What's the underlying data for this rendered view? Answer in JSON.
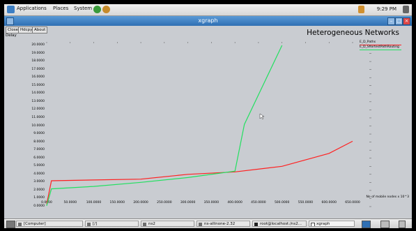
{
  "desktop": {
    "menus": [
      "Applications",
      "Places",
      "System"
    ],
    "clock": "9:29 PM"
  },
  "window": {
    "title": "xgraph",
    "buttons": [
      "Close",
      "Hdcpy",
      "About"
    ]
  },
  "chart_data": {
    "type": "line",
    "title": "Heterogeneous Networks",
    "ylabel": "Delay",
    "xlabel": "No of mobile nodes x 10^3",
    "xlim": [
      0,
      650
    ],
    "ylim": [
      0,
      20
    ],
    "x_ticks": [
      "0.0000",
      "50.0000",
      "100.0000",
      "150.0000",
      "200.0000",
      "250.0000",
      "300.0000",
      "350.0000",
      "400.0000",
      "450.0000",
      "500.0000",
      "550.0000",
      "600.0000",
      "650.0000"
    ],
    "y_ticks": [
      "0.0000",
      "1.0000",
      "2.0000",
      "3.0000",
      "4.0000",
      "5.0000",
      "6.0000",
      "7.0000",
      "8.0000",
      "9.0000",
      "10.0000",
      "11.0000",
      "12.0000",
      "13.0000",
      "14.0000",
      "15.0000",
      "16.0000",
      "17.0000",
      "18.0000",
      "19.0000",
      "20.0000"
    ],
    "series": [
      {
        "name": "E_D_Paths",
        "color": "#ff2020",
        "x": [
          0,
          10,
          100,
          200,
          300,
          400,
          500,
          600,
          650
        ],
        "y": [
          0.3,
          3.2,
          3.3,
          3.4,
          4.0,
          4.3,
          5.0,
          6.6,
          8.1
        ]
      },
      {
        "name": "E_D_ShortestPathRouting",
        "color": "#22e060",
        "x": [
          0,
          10,
          100,
          200,
          300,
          400,
          420,
          500
        ],
        "y": [
          0.1,
          2.2,
          2.5,
          3.0,
          3.6,
          4.4,
          10.2,
          20.0
        ]
      }
    ],
    "grid": false,
    "legend_position": "top-right"
  },
  "taskbar": {
    "tasks": [
      "[Computer]",
      "[/]",
      "ns2",
      "ns-allinone-2.32",
      "root@localhost:/ns2...",
      "xgraph"
    ]
  }
}
